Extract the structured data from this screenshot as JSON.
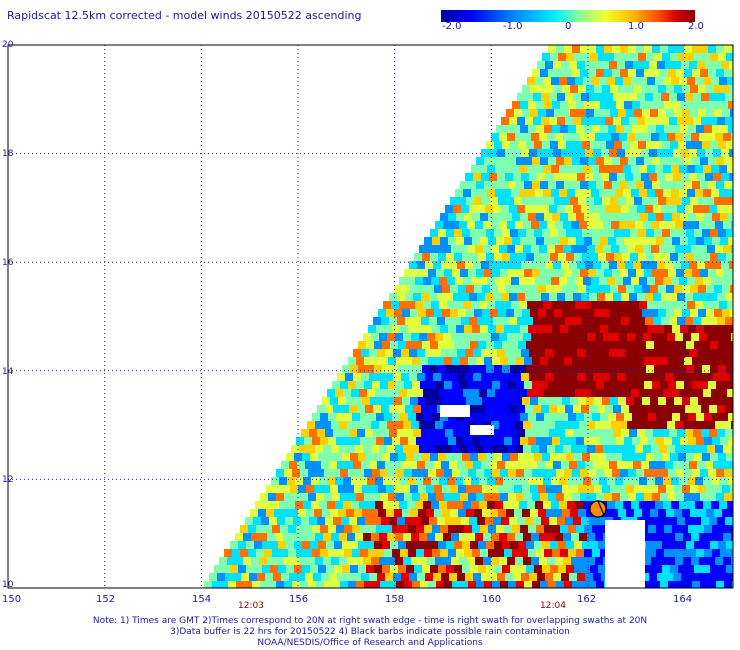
{
  "title": "Rapidscat 12.5km corrected - model winds 20150522 ascending",
  "colorbar": {
    "ticks": [
      "-2.0",
      "-1.0",
      "0",
      "1.0",
      "2.0"
    ],
    "range": [
      -2.0,
      2.0
    ],
    "colors": [
      "#0000a0",
      "#0000ff",
      "#0090ff",
      "#00e0ff",
      "#80ffb0",
      "#e0ff40",
      "#ffd000",
      "#ff7000",
      "#e00000",
      "#8b0000"
    ]
  },
  "map": {
    "lon_labels": [
      "150",
      "152",
      "154",
      "156",
      "158",
      "160",
      "162",
      "164"
    ],
    "lat_labels": [
      "20",
      "18",
      "16",
      "14",
      "12",
      "10"
    ],
    "lon_range": [
      150,
      165
    ],
    "lat_range": [
      10,
      20
    ],
    "grid": true,
    "swath_times": [
      "12:03",
      "12:04"
    ]
  },
  "notes": [
    "Note: 1) Times are GMT 2)Times correspond to 20N at right swath edge - time is right swath for overlapping swaths at 20N",
    "3)Data buffer is 22 hrs for 20150522 4) Black barbs indicate possible rain contamination",
    "NOAA/NESDIS/Office of Research and Applications"
  ]
}
